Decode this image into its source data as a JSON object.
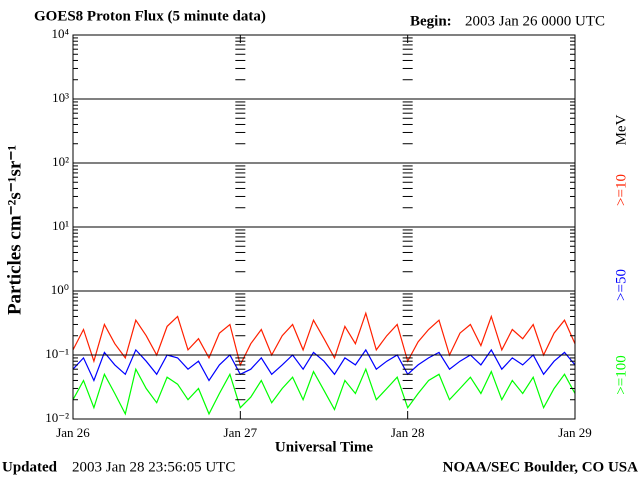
{
  "chart_data": {
    "type": "line",
    "title": "GOES8 Proton Flux (5 minute data)",
    "begin_label": "Begin:",
    "begin_value": "2003 Jan 26 0000 UTC",
    "updated_label": "Updated",
    "updated_value": "2003 Jan 28 23:56:05 UTC",
    "credit": "NOAA/SEC Boulder, CO USA",
    "x_label": "Universal Time",
    "y_label": "Particles cm⁻²s⁻¹sr⁻¹",
    "unit_label": "MeV",
    "log_y": true,
    "grid": true,
    "xlim": [
      0,
      72
    ],
    "xticks": [
      {
        "value": 0,
        "label": "Jan 26"
      },
      {
        "value": 24,
        "label": "Jan 27"
      },
      {
        "value": 48,
        "label": "Jan 28"
      },
      {
        "value": 72,
        "label": "Jan 29"
      }
    ],
    "ylim": [
      0.01,
      10000
    ],
    "yticks": [
      {
        "value": 0.01,
        "label": "10⁻²"
      },
      {
        "value": 0.1,
        "label": "10⁻¹"
      },
      {
        "value": 1,
        "label": "10⁰"
      },
      {
        "value": 10,
        "label": "10¹"
      },
      {
        "value": 100,
        "label": "10²"
      },
      {
        "value": 1000,
        "label": "10³"
      },
      {
        "value": 10000,
        "label": "10⁴"
      }
    ],
    "x": [
      0,
      1.5,
      3,
      4.5,
      6,
      7.5,
      9,
      10.5,
      12,
      13.5,
      15,
      16.5,
      18,
      19.5,
      21,
      22.5,
      24,
      25.5,
      27,
      28.5,
      30,
      31.5,
      33,
      34.5,
      36,
      37.5,
      39,
      40.5,
      42,
      43.5,
      45,
      46.5,
      48,
      49.5,
      51,
      52.5,
      54,
      55.5,
      57,
      58.5,
      60,
      61.5,
      63,
      64.5,
      66,
      67.5,
      69,
      70.5,
      72
    ],
    "series": [
      {
        "name": ">=10",
        "color": "#ff2000",
        "values": [
          0.12,
          0.25,
          0.08,
          0.3,
          0.15,
          0.09,
          0.35,
          0.2,
          0.1,
          0.28,
          0.4,
          0.12,
          0.18,
          0.09,
          0.22,
          0.3,
          0.07,
          0.15,
          0.25,
          0.1,
          0.2,
          0.3,
          0.12,
          0.35,
          0.18,
          0.09,
          0.28,
          0.15,
          0.45,
          0.12,
          0.2,
          0.3,
          0.08,
          0.16,
          0.25,
          0.35,
          0.1,
          0.22,
          0.3,
          0.14,
          0.4,
          0.12,
          0.25,
          0.18,
          0.3,
          0.1,
          0.22,
          0.35,
          0.15
        ]
      },
      {
        "name": ">=50",
        "color": "#0000ff",
        "values": [
          0.06,
          0.09,
          0.04,
          0.11,
          0.07,
          0.05,
          0.12,
          0.08,
          0.05,
          0.1,
          0.09,
          0.06,
          0.08,
          0.04,
          0.07,
          0.1,
          0.05,
          0.06,
          0.09,
          0.05,
          0.07,
          0.1,
          0.06,
          0.11,
          0.08,
          0.05,
          0.09,
          0.07,
          0.12,
          0.06,
          0.08,
          0.1,
          0.05,
          0.07,
          0.09,
          0.11,
          0.06,
          0.08,
          0.1,
          0.07,
          0.12,
          0.06,
          0.09,
          0.07,
          0.1,
          0.05,
          0.08,
          0.11,
          0.07
        ]
      },
      {
        "name": ">=100",
        "color": "#00ff00",
        "values": [
          0.02,
          0.04,
          0.015,
          0.05,
          0.025,
          0.012,
          0.06,
          0.03,
          0.018,
          0.045,
          0.035,
          0.02,
          0.03,
          0.012,
          0.025,
          0.05,
          0.015,
          0.022,
          0.04,
          0.018,
          0.03,
          0.045,
          0.02,
          0.055,
          0.028,
          0.014,
          0.04,
          0.025,
          0.06,
          0.02,
          0.03,
          0.045,
          0.015,
          0.025,
          0.04,
          0.05,
          0.02,
          0.03,
          0.045,
          0.025,
          0.055,
          0.02,
          0.04,
          0.025,
          0.045,
          0.015,
          0.03,
          0.05,
          0.025
        ]
      }
    ]
  }
}
